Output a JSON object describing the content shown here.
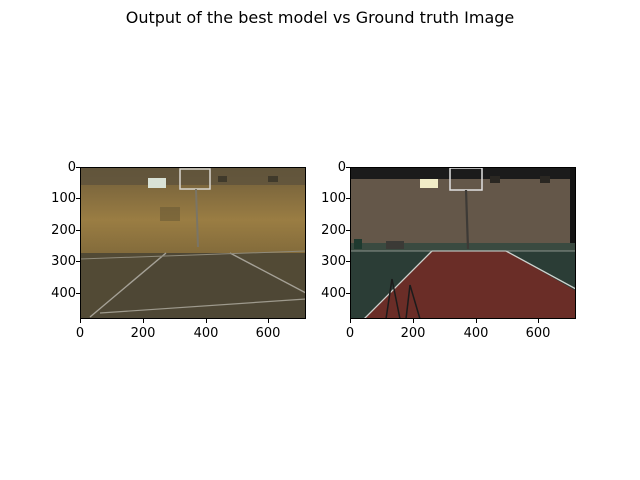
{
  "figure": {
    "title": "Output of the best model vs Ground truth Image"
  },
  "panels": [
    {
      "image_description_tag": "model-output",
      "xticks": [
        "0",
        "200",
        "400",
        "600"
      ],
      "yticks": [
        "0",
        "100",
        "200",
        "300",
        "400"
      ]
    },
    {
      "image_description_tag": "ground-truth",
      "xticks": [
        "0",
        "200",
        "400",
        "600"
      ],
      "yticks": [
        "0",
        "100",
        "200",
        "300",
        "400"
      ]
    }
  ],
  "colors": {
    "output_wall": "#8a7240",
    "output_floor": "#5b5438",
    "gt_wall": "#5e5346",
    "gt_court_red": "#6a2d27",
    "gt_court_green": "#2b3d36",
    "gt_sky": "#1b1b1b"
  }
}
